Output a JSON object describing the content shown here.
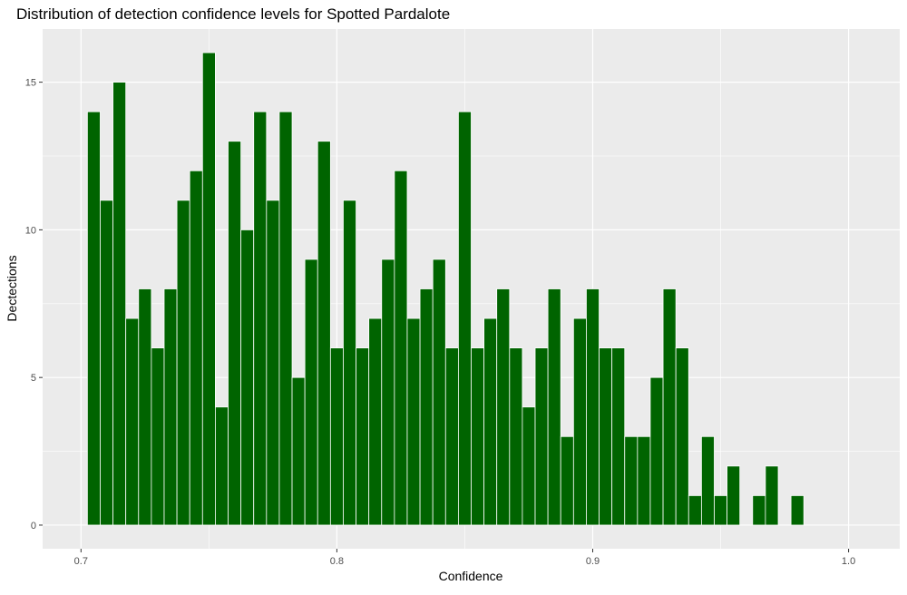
{
  "chart_data": {
    "type": "bar",
    "title": "Distribution of detection confidence levels for Spotted Pardalote",
    "xlabel": "Confidence",
    "ylabel": "Dectections",
    "xlim": [
      0.685,
      1.02
    ],
    "ylim": [
      -0.8,
      16.8
    ],
    "x_ticks": [
      "0.7",
      "0.8",
      "0.9",
      "1.0"
    ],
    "y_ticks": [
      "0",
      "5",
      "10",
      "15"
    ],
    "grid": true,
    "legend": "none",
    "colors": {
      "bar_fill": "#006400",
      "bar_outline": "#ffffff",
      "panel": "#ebebeb",
      "grid": "#ffffff"
    },
    "bin_width": 0.005,
    "x": [
      0.705,
      0.71,
      0.715,
      0.72,
      0.725,
      0.73,
      0.735,
      0.74,
      0.745,
      0.75,
      0.755,
      0.76,
      0.765,
      0.77,
      0.775,
      0.78,
      0.785,
      0.79,
      0.795,
      0.8,
      0.805,
      0.81,
      0.815,
      0.82,
      0.825,
      0.83,
      0.835,
      0.84,
      0.845,
      0.85,
      0.855,
      0.86,
      0.865,
      0.87,
      0.875,
      0.88,
      0.885,
      0.89,
      0.895,
      0.9,
      0.905,
      0.91,
      0.915,
      0.92,
      0.925,
      0.93,
      0.935,
      0.94,
      0.945,
      0.95,
      0.955,
      0.96,
      0.965,
      0.97,
      0.975,
      0.98
    ],
    "values": [
      14,
      11,
      15,
      7,
      8,
      6,
      8,
      11,
      12,
      16,
      4,
      13,
      10,
      14,
      11,
      14,
      5,
      9,
      13,
      6,
      11,
      6,
      7,
      9,
      12,
      7,
      8,
      9,
      6,
      14,
      6,
      7,
      8,
      6,
      4,
      6,
      8,
      3,
      7,
      8,
      6,
      6,
      3,
      3,
      5,
      8,
      6,
      1,
      3,
      1,
      2,
      0,
      1,
      2,
      0,
      1
    ]
  }
}
